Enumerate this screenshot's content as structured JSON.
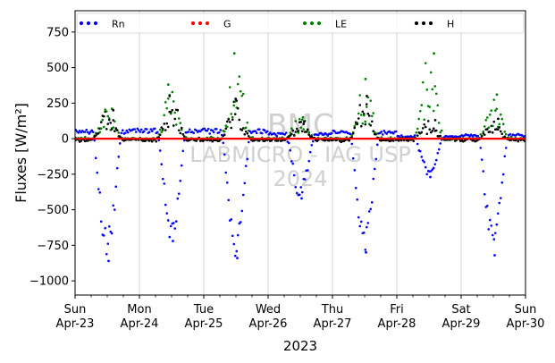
{
  "chart_data": {
    "type": "scatter",
    "title": "",
    "xlabel": "2023",
    "ylabel": "Fluxes [W/m²]",
    "xlim": [
      "2023-04-23T00:00",
      "2023-04-30T00:00"
    ],
    "ylim": [
      -1100,
      900
    ],
    "yticks": [
      750,
      500,
      250,
      0,
      -250,
      -500,
      -750,
      -1000
    ],
    "xticks": [
      {
        "day": "Sun",
        "date": "Apr-23"
      },
      {
        "day": "Mon",
        "date": "Apr-24"
      },
      {
        "day": "Tue",
        "date": "Apr-25"
      },
      {
        "day": "Wed",
        "date": "Apr-26"
      },
      {
        "day": "Thu",
        "date": "Apr-27"
      },
      {
        "day": "Fri",
        "date": "Apr-28"
      },
      {
        "day": "Sat",
        "date": "Apr-29"
      },
      {
        "day": "Sun",
        "date": "Apr-30"
      }
    ],
    "grid": "vertical",
    "legend": "top",
    "watermark": [
      "BMC",
      "LABMICRO - IAG USP",
      "2024"
    ],
    "daily_extremes": {
      "dates": [
        "2023-04-23",
        "2023-04-24",
        "2023-04-25",
        "2023-04-26",
        "2023-04-27",
        "2023-04-28",
        "2023-04-29"
      ],
      "Rn_night": [
        70,
        75,
        70,
        40,
        55,
        20,
        30
      ],
      "Rn_midday_min": [
        -860,
        -720,
        -840,
        -420,
        -800,
        -270,
        -820
      ],
      "LE_max": [
        210,
        380,
        600,
        150,
        420,
        600,
        310
      ],
      "H_max": [
        200,
        300,
        280,
        120,
        300,
        130,
        140
      ]
    },
    "series": [
      {
        "name": "Rn",
        "color": "#0000ff",
        "range": [
          -860,
          75
        ]
      },
      {
        "name": "G",
        "color": "#ff0000",
        "range": [
          -5,
          5
        ]
      },
      {
        "name": "LE",
        "color": "#008000",
        "range": [
          -30,
          600
        ]
      },
      {
        "name": "H",
        "color": "#000000",
        "range": [
          -40,
          300
        ]
      }
    ]
  }
}
